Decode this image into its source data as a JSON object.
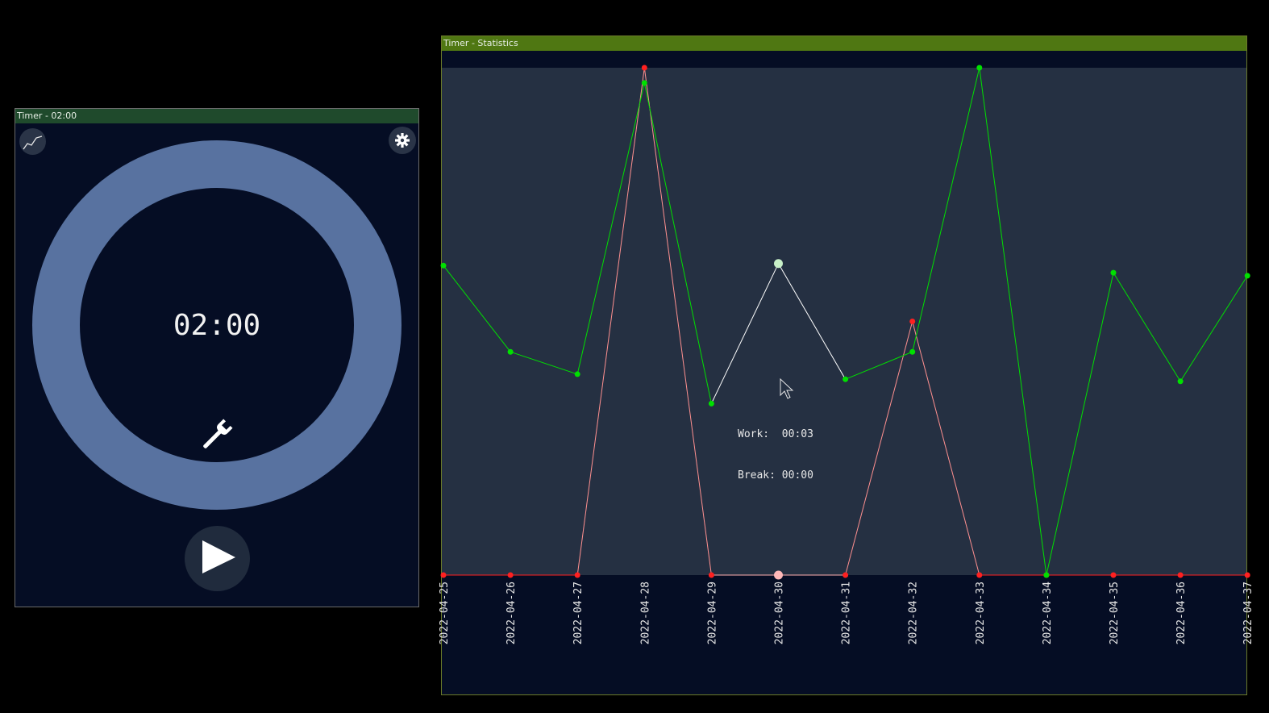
{
  "timer_window": {
    "title": "Timer - 02:00",
    "time_display": "02:00",
    "icons": {
      "stats": "line-chart-icon",
      "settings": "gear-icon",
      "wrench": "wrench-icon",
      "play": "play-icon"
    },
    "colors": {
      "ring": "#5872a0",
      "background": "#050d24"
    }
  },
  "stats_window": {
    "title": "Timer - Statistics",
    "tooltip": {
      "work_label": "Work:",
      "work_value": "00:03",
      "break_label": "Break:",
      "break_value": "00:00"
    },
    "colors": {
      "work": "#00e000",
      "break": "#ff2020",
      "highlight": "#ffffff",
      "plot_bg": "#253042"
    }
  },
  "chart_data": {
    "type": "line",
    "categories": [
      "2022-04-25",
      "2022-04-26",
      "2022-04-27",
      "2022-04-28",
      "2022-04-29",
      "2022-04-30",
      "2022-04-31",
      "2022-04-32",
      "2022-04-33",
      "2022-04-34",
      "2022-04-35",
      "2022-04-36",
      "2022-04-37"
    ],
    "series": [
      {
        "name": "Work",
        "color": "#00e000",
        "values": [
          3.05,
          2.2,
          1.98,
          4.85,
          1.69,
          3.07,
          1.93,
          2.2,
          5.0,
          0,
          2.98,
          1.91,
          2.95
        ]
      },
      {
        "name": "Break",
        "color": "#ff2020",
        "values": [
          0,
          0,
          0,
          5.0,
          0,
          0,
          0,
          2.5,
          0,
          0,
          0,
          0,
          0
        ]
      }
    ],
    "highlighted_category": "2022-04-30",
    "ylim": [
      0,
      5
    ],
    "grid": false,
    "legend": "none"
  }
}
